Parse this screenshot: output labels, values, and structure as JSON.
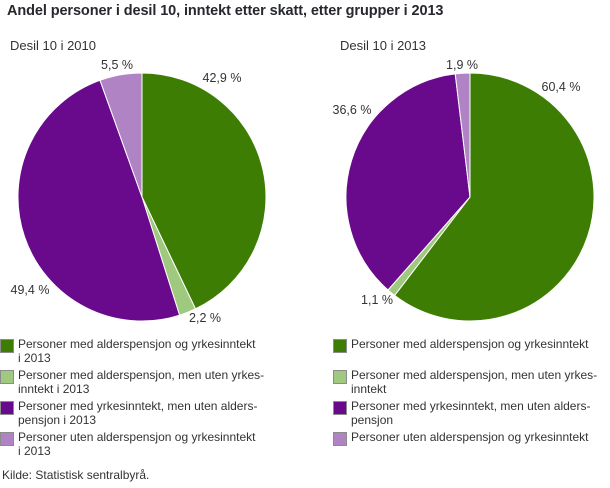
{
  "title": "Andel personer i desil 10, inntekt etter skatt, etter grupper i 2013",
  "source": "Kilde: Statistisk sentralbyrå.",
  "chart_data": [
    {
      "type": "pie",
      "title": "Desil 10 i 2010",
      "categories": [
        "Personer med alderspensjon og yrkesinntekt i 2013",
        "Personer med alderspensjon, men uten yrkesinntekt i 2013",
        "Personer med yrkesinntekt, men uten alderspensjon i 2013",
        "Personer uten alderspensjon og yrkesinntekt i 2013"
      ],
      "values": [
        42.9,
        2.2,
        49.4,
        5.5
      ],
      "labels": [
        "42,9 %",
        "2,2 %",
        "49,4 %",
        "5,5 %"
      ],
      "colors": [
        "#3d7d04",
        "#9fc97f",
        "#690a8c",
        "#b083c5"
      ],
      "legend": [
        [
          "Personer med alderspensjon og yrkesinntekt",
          "i 2013"
        ],
        [
          "Personer med alderspensjon, men uten yrkes-",
          "inntekt i 2013"
        ],
        [
          "Personer med yrkesinntekt, men uten alders-",
          "pensjon i 2013"
        ],
        [
          "Personer uten alderspensjon og yrkesinntekt",
          "i 2013"
        ]
      ],
      "start_angle_deg": 0,
      "direction": "clockwise",
      "legend_position": "bottom"
    },
    {
      "type": "pie",
      "title": "Desil 10 i 2013",
      "categories": [
        "Personer med alderspensjon og yrkesinntekt",
        "Personer med alderspensjon, men uten yrkesinntekt",
        "Personer med yrkesinntekt, men uten alderspensjon",
        "Personer uten alderspensjon og yrkesinntekt"
      ],
      "values": [
        60.4,
        1.1,
        36.6,
        1.9
      ],
      "labels": [
        "60,4 %",
        "1,1 %",
        "36,6 %",
        "1,9 %"
      ],
      "colors": [
        "#3d7d04",
        "#9fc97f",
        "#690a8c",
        "#b083c5"
      ],
      "legend": [
        [
          "Personer med alderspensjon og yrkesinntekt"
        ],
        [
          "Personer med alderspensjon, men uten yrkes-",
          "inntekt"
        ],
        [
          "Personer med yrkesinntekt, men uten alders-",
          "pensjon"
        ],
        [
          "Personer uten alderspensjon og yrkesinntekt"
        ]
      ],
      "start_angle_deg": 0,
      "direction": "clockwise",
      "legend_position": "bottom"
    }
  ]
}
